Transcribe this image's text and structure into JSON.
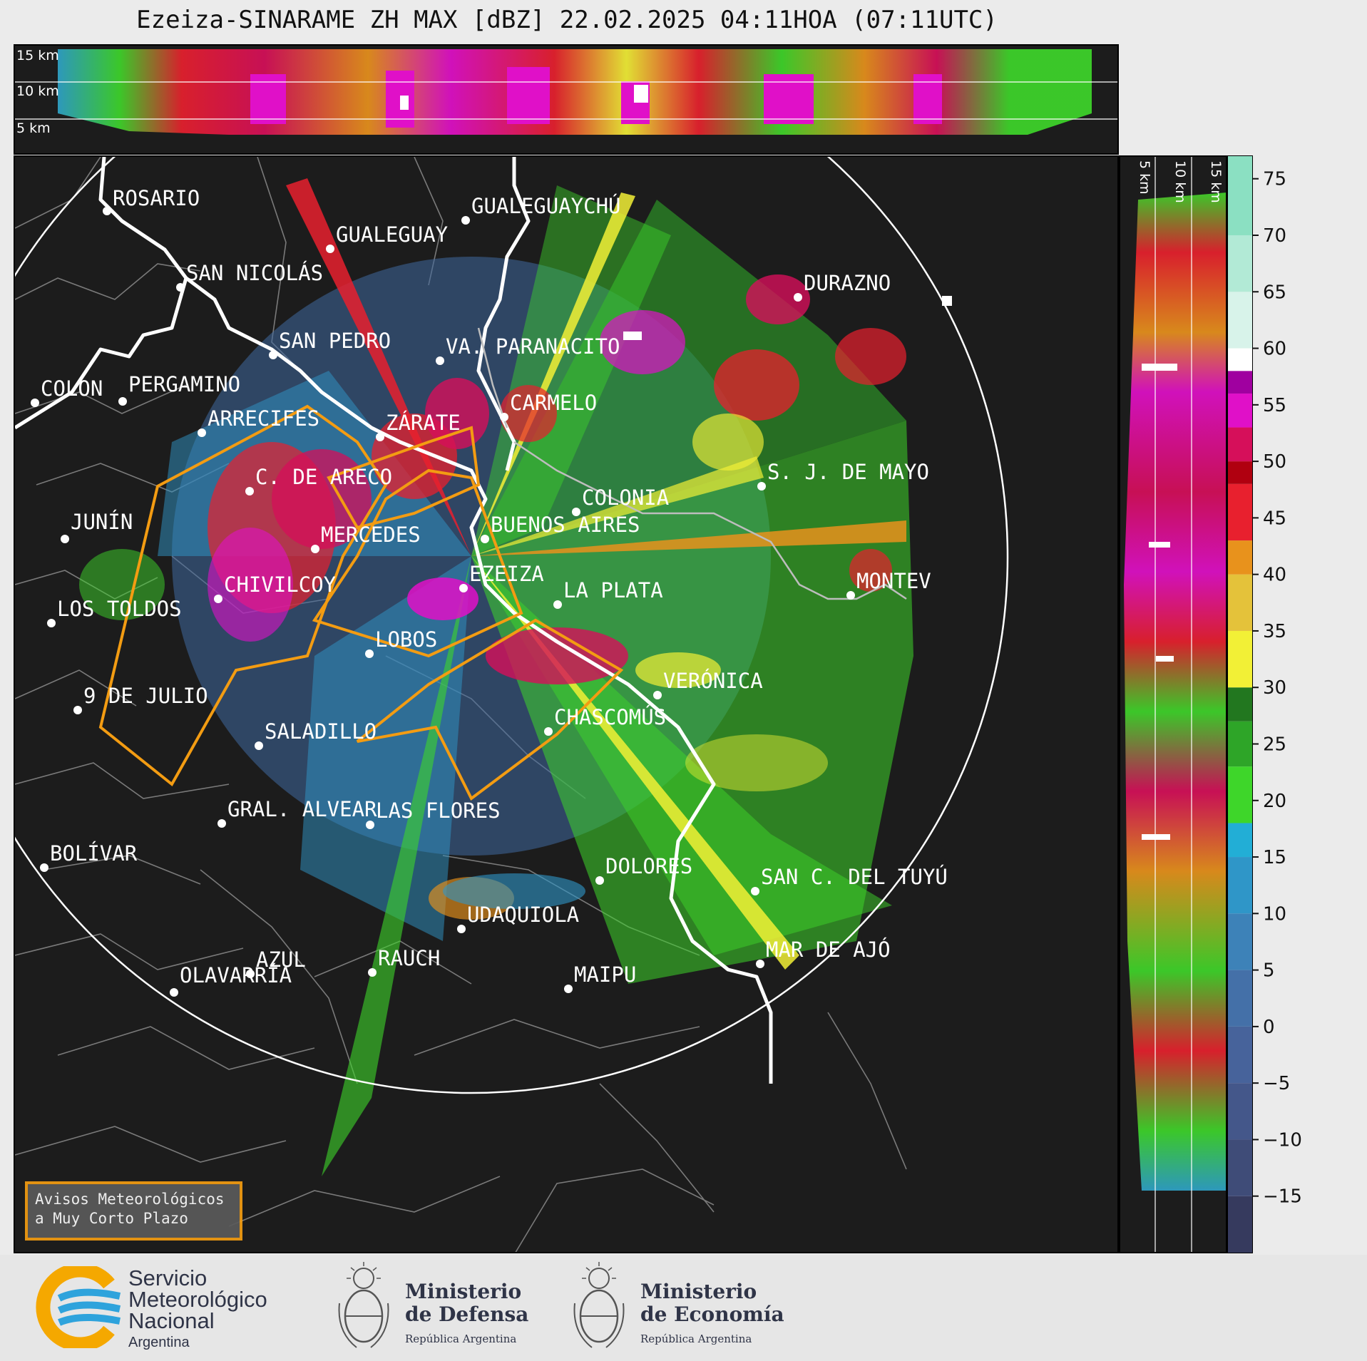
{
  "title": "Ezeiza-SINARAME ZH MAX [dBZ] 22.02.2025 04:11HOA (07:11UTC)",
  "top_panel": {
    "height_labels": [
      "15 km",
      "10 km",
      "5 km"
    ]
  },
  "side_panel": {
    "height_labels": [
      "5 km",
      "10 km",
      "15 km"
    ]
  },
  "colorbar": {
    "ticks": [
      "75",
      "70",
      "65",
      "60",
      "55",
      "50",
      "45",
      "40",
      "35",
      "30",
      "25",
      "20",
      "15",
      "10",
      "5",
      "0",
      "−5",
      "−10",
      "−15"
    ],
    "range": [
      -20,
      77
    ],
    "unit": "dBZ",
    "colors": [
      {
        "from": -20,
        "color": "#363a5e"
      },
      {
        "from": -15,
        "color": "#3f4c78"
      },
      {
        "from": -10,
        "color": "#44578a"
      },
      {
        "from": -5,
        "color": "#47639b"
      },
      {
        "from": 0,
        "color": "#4470a8"
      },
      {
        "from": 5,
        "color": "#3d82b8"
      },
      {
        "from": 10,
        "color": "#2f96c8"
      },
      {
        "from": 15,
        "color": "#22aed6"
      },
      {
        "from": 18,
        "color": "#3ed62a"
      },
      {
        "from": 23,
        "color": "#2ea528"
      },
      {
        "from": 27,
        "color": "#22771f"
      },
      {
        "from": 30,
        "color": "#f2f036"
      },
      {
        "from": 35,
        "color": "#e4c23a"
      },
      {
        "from": 40,
        "color": "#e8921c"
      },
      {
        "from": 43,
        "color": "#e8202e"
      },
      {
        "from": 48,
        "color": "#b00010"
      },
      {
        "from": 50,
        "color": "#d60f5a"
      },
      {
        "from": 53,
        "color": "#e010c8"
      },
      {
        "from": 56,
        "color": "#a000a0"
      },
      {
        "from": 58,
        "color": "#ffffff"
      },
      {
        "from": 60,
        "color": "#d8f3ea"
      },
      {
        "from": 65,
        "color": "#b2ead6"
      },
      {
        "from": 70,
        "color": "#8be0c2"
      }
    ]
  },
  "cities": [
    {
      "name": "ROSARIO"
    },
    {
      "name": "GUALEGUAYCHÚ"
    },
    {
      "name": "GUALEGUAY"
    },
    {
      "name": "SAN NICOLÁS"
    },
    {
      "name": "DURAZNO"
    },
    {
      "name": "SAN PEDRO"
    },
    {
      "name": "VA. PARANACITO"
    },
    {
      "name": "COLON"
    },
    {
      "name": "PERGAMINO"
    },
    {
      "name": "CARMELO"
    },
    {
      "name": "ARRECIFES"
    },
    {
      "name": "ZÁRATE"
    },
    {
      "name": "S. J. DE MAYO"
    },
    {
      "name": "C. DE ARECO"
    },
    {
      "name": "COLONIA"
    },
    {
      "name": "JUNÍN"
    },
    {
      "name": "BUENOS AIRES"
    },
    {
      "name": "MERCEDES"
    },
    {
      "name": "MONTEV"
    },
    {
      "name": "EZEIZA"
    },
    {
      "name": "CHIVILCOY"
    },
    {
      "name": "LA PLATA"
    },
    {
      "name": "LOS TOLDOS"
    },
    {
      "name": "LOBOS"
    },
    {
      "name": "VERÓNICA"
    },
    {
      "name": "9 DE JULIO"
    },
    {
      "name": "CHASCOMÚS"
    },
    {
      "name": "SALADILLO"
    },
    {
      "name": "GRAL. ALVEAR"
    },
    {
      "name": "LAS FLORES"
    },
    {
      "name": "BOLÍVAR"
    },
    {
      "name": "DOLORES"
    },
    {
      "name": "SAN C. DEL TUYÚ"
    },
    {
      "name": "UDAQUIOLA"
    },
    {
      "name": "MAR DE AJÓ"
    },
    {
      "name": "RAUCH"
    },
    {
      "name": "AZUL"
    },
    {
      "name": "MAIPU"
    },
    {
      "name": "OLAVARRÍA"
    }
  ],
  "avisos": {
    "line1": "Avisos Meteorológicos",
    "line2": "a Muy Corto Plazo"
  },
  "footer": {
    "smn": {
      "line1": "Servicio",
      "line2": "Meteorológico",
      "line3": "Nacional",
      "line4": "Argentina"
    },
    "defensa": {
      "line1": "Ministerio",
      "line2": "de Defensa",
      "line3": "República Argentina"
    },
    "economia": {
      "line1": "Ministerio",
      "line2": "de Economía",
      "line3": "República Argentina"
    }
  },
  "accent_colors": {
    "warning_polygon": "#f39c12",
    "range_ring": "#ffffff",
    "background": "#1c1c1c"
  }
}
